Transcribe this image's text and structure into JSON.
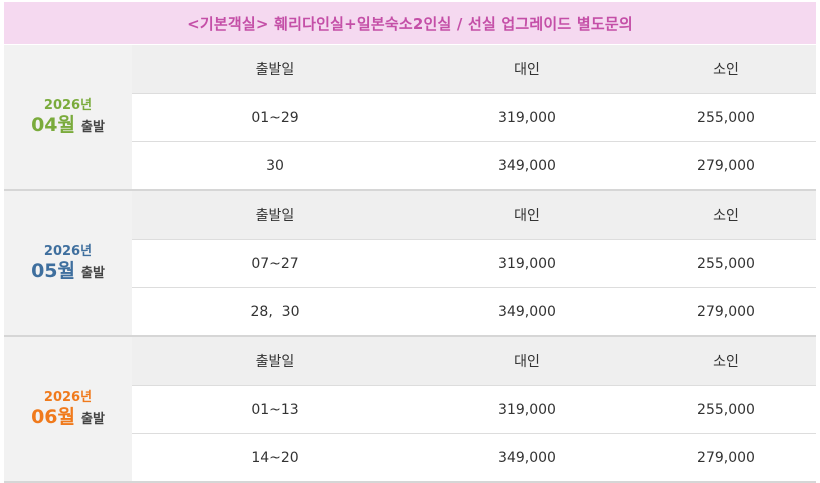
{
  "header": {
    "title": "<기본객실> 훼리다인실+일본숙소2인실  /  선실 업그레이드 별도문의"
  },
  "columns": {
    "date": "출발일",
    "adult": "대인",
    "child": "소인"
  },
  "blocks": [
    {
      "year": "2026년",
      "month": "04월",
      "departure": "출발",
      "color": "#7aab3c",
      "rows": [
        {
          "date": "01~29",
          "adult": "319,000",
          "child": "255,000"
        },
        {
          "date": "30",
          "adult": "349,000",
          "child": "279,000"
        }
      ]
    },
    {
      "year": "2026년",
      "month": "05월",
      "departure": "출발",
      "color": "#3f6f9e",
      "rows": [
        {
          "date": "07~27",
          "adult": "319,000",
          "child": "255,000"
        },
        {
          "date": "28,  30",
          "adult": "349,000",
          "child": "279,000"
        }
      ]
    },
    {
      "year": "2026년",
      "month": "06월",
      "departure": "출발",
      "color": "#f07a1c",
      "rows": [
        {
          "date": "01~13",
          "adult": "319,000",
          "child": "255,000"
        },
        {
          "date": "14~20",
          "adult": "349,000",
          "child": "279,000"
        }
      ]
    }
  ]
}
